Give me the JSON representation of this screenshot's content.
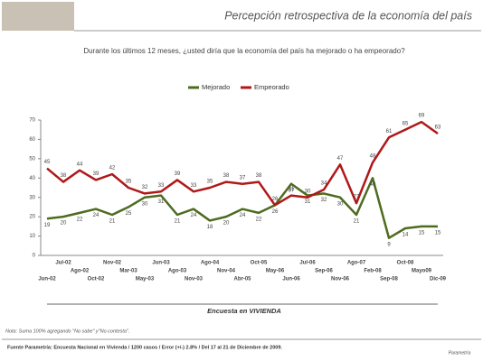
{
  "chart_data": {
    "type": "line",
    "title": "Percepción retrospectiva de la economía del país",
    "subtitle": "Durante los últimos 12 meses, ¿usted diría que la economía del país ha mejorado o ha empeorado?",
    "categories": [
      "Jun-02",
      "Jul-02",
      "Ago-02",
      "Oct-02",
      "Nov-02",
      "Mar-03",
      "May-03",
      "Jun-03",
      "Ago-03",
      "Nov-03",
      "Ago-04",
      "Nov-04",
      "Abr-05",
      "Oct-05",
      "May-06",
      "Jun-06",
      "Jul-06",
      "Sep-06",
      "Nov-06",
      "Ago-07",
      "Feb-08",
      "Sep-08",
      "Oct-08",
      "Mayo09",
      "Dic-09"
    ],
    "series": [
      {
        "name": "Mejorado",
        "color": "#4e6b1e",
        "values": [
          19,
          20,
          22,
          24,
          21,
          25,
          30,
          31,
          21,
          24,
          18,
          20,
          24,
          22,
          26,
          37,
          31,
          32,
          30,
          21,
          40,
          9,
          14,
          15,
          15
        ]
      },
      {
        "name": "Empeorado",
        "color": "#b01818",
        "values": [
          45,
          38,
          44,
          39,
          42,
          35,
          32,
          33,
          39,
          33,
          35,
          38,
          37,
          38,
          26,
          31,
          30,
          34,
          47,
          27,
          48,
          61,
          65,
          69,
          63
        ]
      }
    ],
    "ylim": [
      0,
      70
    ],
    "yticks": [
      0,
      10,
      20,
      30,
      40,
      50,
      60,
      70
    ],
    "annotation": "Encuesta en VIVIENDA",
    "note": "Nota: Suma 100% agregando \"No sabe\" y\"No contesta\".",
    "source": "Fuente Parametría: Encuesta Nacional en Vivienda / 1200 casos / Error (+/-) 2.8% / Del 17 al 21 de Diciembre de 2009.",
    "brand": "Parametría"
  }
}
